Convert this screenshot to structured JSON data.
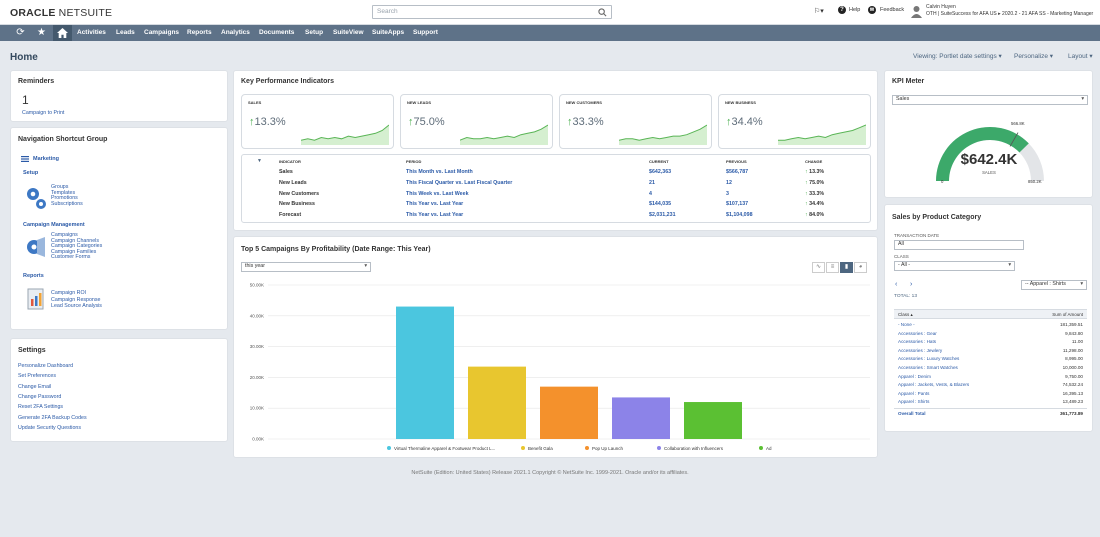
{
  "header": {
    "logo_bold": "ORACLE",
    "logo_rest": " NETSUITE",
    "search_placeholder": "Search",
    "help": "Help",
    "feedback": "Feedback",
    "user_name": "Calvin Huyen",
    "user_role": "OTH | SuiteSuccess for AFA US ▸ 2020.2 - 21 AFA SS - Marketing Manager"
  },
  "nav": {
    "items": [
      "Activities",
      "Leads",
      "Campaigns",
      "Reports",
      "Analytics",
      "Documents",
      "Setup",
      "SuiteView",
      "SuiteApps",
      "Support"
    ]
  },
  "page": {
    "title": "Home",
    "viewing": "Viewing: Portlet date settings ▾",
    "personalize": "Personalize ▾",
    "layout": "Layout ▾"
  },
  "reminders": {
    "title": "Reminders",
    "count": "1",
    "label": "Campaign to Print"
  },
  "shortcuts": {
    "title": "Navigation Shortcut Group",
    "marketing": "Marketing",
    "setup_heading": "Setup",
    "setup_links": [
      "Groups",
      "Templates",
      "Promotions",
      "Subscriptions"
    ],
    "campaign_heading": "Campaign Management",
    "campaign_links": [
      "Campaigns",
      "Campaign Channels",
      "Campaign Categories",
      "Campaign Families",
      "Customer Forms"
    ],
    "reports_heading": "Reports",
    "reports_links": [
      "Campaign ROI",
      "Campaign Response",
      "Lead Source Analysis"
    ]
  },
  "settings": {
    "title": "Settings",
    "links": [
      "Personalize Dashboard",
      "Set Preferences",
      "Change Email",
      "Change Password",
      "Reset 2FA Settings",
      "Generate 2FA Backup Codes",
      "Update Security Questions"
    ]
  },
  "kpi": {
    "title": "Key Performance Indicators",
    "boxes": [
      {
        "label": "SALES",
        "value": "13.3%"
      },
      {
        "label": "NEW LEADS",
        "value": "75.0%"
      },
      {
        "label": "NEW CUSTOMERS",
        "value": "33.3%"
      },
      {
        "label": "NEW BUSINESS",
        "value": "34.4%"
      }
    ],
    "headers": [
      "INDICATOR",
      "PERIOD",
      "CURRENT",
      "PREVIOUS",
      "CHANGE"
    ],
    "rows": [
      {
        "indicator": "Sales",
        "period": "This Month vs. Last Month",
        "current": "$642,363",
        "previous": "$566,787",
        "change": "13.3%"
      },
      {
        "indicator": "New Leads",
        "period": "This Fiscal Quarter vs. Last Fiscal Quarter",
        "current": "21",
        "previous": "12",
        "change": "75.0%"
      },
      {
        "indicator": "New Customers",
        "period": "This Week vs. Last Week",
        "current": "4",
        "previous": "3",
        "change": "33.3%"
      },
      {
        "indicator": "New Business",
        "period": "This Year vs. Last Year",
        "current": "$144,035",
        "previous": "$107,137",
        "change": "34.4%"
      },
      {
        "indicator": "Forecast",
        "period": "This Year vs. Last Year",
        "current": "$2,031,231",
        "previous": "$1,104,098",
        "change": "84.0%"
      }
    ]
  },
  "campaigns": {
    "title": "Top 5 Campaigns By Profitability (Date Range: This Year)",
    "filter": "this year"
  },
  "kpi_meter": {
    "title": "KPI Meter",
    "select": "Sales",
    "value": "$642.4K",
    "sub": "SALES",
    "min": "0",
    "max": "850.2K",
    "target": "566.8K",
    "fraction": 0.755
  },
  "sales_cat": {
    "title": "Sales by Product Category",
    "trans_label": "TRANSACTION DATE",
    "trans_value": "All",
    "class_label": "CLASS",
    "class_value": "- All -",
    "nav_select": "-- Apparel : Shirts",
    "total": "TOTAL: 13",
    "col_class": "Class ▴",
    "col_amount": "Sum of Amount",
    "rows": [
      {
        "c": "- None -",
        "a": "181,359.51"
      },
      {
        "c": "Accessories : Gear",
        "a": "9,843.80"
      },
      {
        "c": "Accessories : Hats",
        "a": "11.00"
      },
      {
        "c": "Accessories : Jewlery",
        "a": "11,298.00"
      },
      {
        "c": "Accessories : Luxury Watches",
        "a": "8,995.00"
      },
      {
        "c": "Accessories : Smart Watches",
        "a": "10,000.00"
      },
      {
        "c": "Apparel : Denim",
        "a": "9,750.00"
      },
      {
        "c": "Apparel : Jackets, Vests, & Blazers",
        "a": "74,532.24"
      },
      {
        "c": "Apparel : Pants",
        "a": "16,395.13"
      },
      {
        "c": "Apparel : Shirts",
        "a": "13,489.23"
      }
    ],
    "overall_label": "Overall Total",
    "overall_value": "361,773.89"
  },
  "footer": "NetSuite (Edition: United States) Release 2021.1 Copyright © NetSuite Inc. 1999-2021. Oracle and/or its affiliates.",
  "colors": {
    "nav": "#5e7288",
    "link": "#2b5aa7",
    "green": "#4caf50"
  },
  "chart_data": [
    {
      "role": "campaigns",
      "type": "bar",
      "categories": [
        "Virtual Thermaline Apparel & Footwear Product L...",
        "Benefit Gala",
        "Pop Up Launch",
        "Collaboration with Influencers",
        "Ad"
      ],
      "values": [
        43000,
        23500,
        17000,
        13500,
        12000
      ],
      "colors": [
        "#4bc6df",
        "#e8c62f",
        "#f4912c",
        "#8c83e8",
        "#5bc033"
      ],
      "ylim": [
        0,
        50000
      ],
      "yticks": [
        "0.00K",
        "10.00K",
        "20.00K",
        "30.00K",
        "40.00K",
        "50.00K"
      ],
      "legend": "bottom"
    },
    {
      "role": "sparks",
      "type": "area",
      "series": [
        {
          "values": [
            2,
            3,
            2,
            4,
            3,
            4,
            3,
            5,
            4,
            5,
            6,
            7,
            9,
            13
          ]
        },
        {
          "values": [
            2,
            4,
            3,
            3,
            4,
            3,
            4,
            5,
            4,
            6,
            7,
            8,
            10,
            13
          ]
        },
        {
          "values": [
            2,
            3,
            3,
            2,
            3,
            4,
            3,
            4,
            5,
            5,
            6,
            8,
            10,
            13
          ]
        },
        {
          "values": [
            2,
            2,
            3,
            4,
            3,
            4,
            5,
            4,
            6,
            7,
            8,
            9,
            11,
            13
          ]
        }
      ]
    }
  ]
}
